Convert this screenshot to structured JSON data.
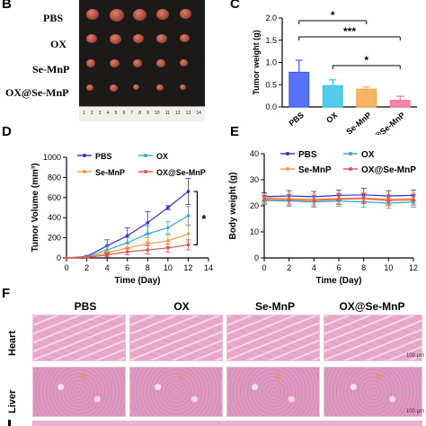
{
  "panels": {
    "b": "B",
    "c": "C",
    "d": "D",
    "e": "E",
    "f": "F"
  },
  "photo": {
    "groups": [
      "PBS",
      "OX",
      "Se-MnP",
      "OX@Se-MnP"
    ],
    "ruler_numbers": [
      "1",
      "2",
      "3",
      "4",
      "5",
      "6",
      "7",
      "8",
      "9",
      "10",
      "11",
      "12",
      "13",
      "14"
    ],
    "colors": {
      "background": "#1c1a18",
      "tumor": "#a8473b",
      "ruler": "#f2f0ea"
    }
  },
  "chart_data": [
    {
      "id": "tumor-weight",
      "type": "bar",
      "ylabel": "Tumor weight (g)",
      "categories": [
        "PBS",
        "OX",
        "Se-MnP",
        "OX@Se-MnP"
      ],
      "values": [
        0.78,
        0.48,
        0.4,
        0.15
      ],
      "errors": [
        0.27,
        0.13,
        0.05,
        0.09
      ],
      "colors": [
        "#3a5bff",
        "#36c4e8",
        "#f7a64a",
        "#ff6e9f"
      ],
      "ylim": [
        0,
        2.0
      ],
      "yticks": [
        "0.0",
        "0.5",
        "1.0",
        "1.5",
        "2.0"
      ],
      "significance": [
        {
          "from": "PBS",
          "to": "Se-MnP",
          "label": "*"
        },
        {
          "from": "PBS",
          "to": "OX@Se-MnP",
          "label": "***"
        },
        {
          "from": "OX",
          "to": "OX@Se-MnP",
          "label": "*"
        }
      ]
    },
    {
      "id": "tumor-volume",
      "type": "line",
      "xlabel": "Time (Day)",
      "ylabel": "Tumor Volume (mm³)",
      "x": [
        0,
        2,
        4,
        6,
        8,
        10,
        12
      ],
      "xticks": [
        "0",
        "2",
        "4",
        "6",
        "8",
        "10",
        "12",
        "14"
      ],
      "yticks": [
        "0",
        "200",
        "400",
        "600",
        "800",
        "1000"
      ],
      "xlim": [
        0,
        14
      ],
      "ylim": [
        0,
        1000
      ],
      "series": [
        {
          "name": "PBS",
          "color": "#3030d8",
          "values": [
            0,
            15,
            120,
            220,
            350,
            500,
            660
          ],
          "errors": [
            0,
            10,
            60,
            80,
            110,
            20,
            130
          ]
        },
        {
          "name": "OX",
          "color": "#36a9c8",
          "values": [
            0,
            10,
            80,
            150,
            240,
            300,
            420
          ],
          "errors": [
            0,
            8,
            40,
            50,
            80,
            60,
            90
          ]
        },
        {
          "name": "Se-MnP",
          "color": "#f19a3b",
          "values": [
            0,
            8,
            50,
            100,
            140,
            170,
            240
          ],
          "errors": [
            0,
            6,
            30,
            40,
            60,
            60,
            80
          ]
        },
        {
          "name": "OX@Se-MnP",
          "color": "#e0504f",
          "values": [
            0,
            5,
            30,
            60,
            80,
            100,
            130
          ],
          "errors": [
            0,
            5,
            20,
            30,
            40,
            40,
            50
          ]
        }
      ],
      "significance": "*"
    },
    {
      "id": "body-weight",
      "type": "line",
      "xlabel": "Time (Day)",
      "ylabel": "Body weight (g)",
      "x": [
        0,
        2,
        4,
        6,
        8,
        10,
        12
      ],
      "xticks": [
        "0",
        "2",
        "4",
        "6",
        "8",
        "10",
        "12"
      ],
      "yticks": [
        "0",
        "10",
        "20",
        "30",
        "40"
      ],
      "xlim": [
        0,
        12
      ],
      "ylim": [
        0,
        40
      ],
      "series": [
        {
          "name": "PBS",
          "color": "#3030d8",
          "values": [
            23.5,
            23.8,
            23.5,
            24.0,
            24.2,
            23.8,
            24.0
          ],
          "errors": [
            1.5,
            2.0,
            2.0,
            2.0,
            2.5,
            2.0,
            2.0
          ]
        },
        {
          "name": "OX",
          "color": "#36a9c8",
          "values": [
            22.0,
            21.8,
            21.5,
            21.8,
            21.5,
            21.0,
            21.5
          ],
          "errors": [
            1.5,
            2.0,
            2.0,
            2.0,
            2.0,
            2.0,
            2.0
          ]
        },
        {
          "name": "Se-MnP",
          "color": "#f19a3b",
          "values": [
            23.0,
            22.8,
            22.5,
            22.8,
            23.0,
            22.5,
            22.8
          ],
          "errors": [
            1.5,
            2.0,
            2.0,
            2.0,
            2.0,
            2.0,
            2.0
          ]
        },
        {
          "name": "OX@Se-MnP",
          "color": "#e0504f",
          "values": [
            22.5,
            22.3,
            22.0,
            22.5,
            22.8,
            22.0,
            22.3
          ],
          "errors": [
            1.5,
            2.0,
            2.0,
            2.0,
            2.0,
            2.0,
            2.0
          ]
        }
      ]
    }
  ],
  "histology": {
    "columns": [
      "PBS",
      "OX",
      "Se-MnP",
      "OX@Se-MnP"
    ],
    "rows": [
      "Heart",
      "Liver"
    ],
    "scalebar": "100 μm",
    "colors": {
      "heart": "#e9a9cb",
      "liver": "#dd9ac0"
    }
  }
}
